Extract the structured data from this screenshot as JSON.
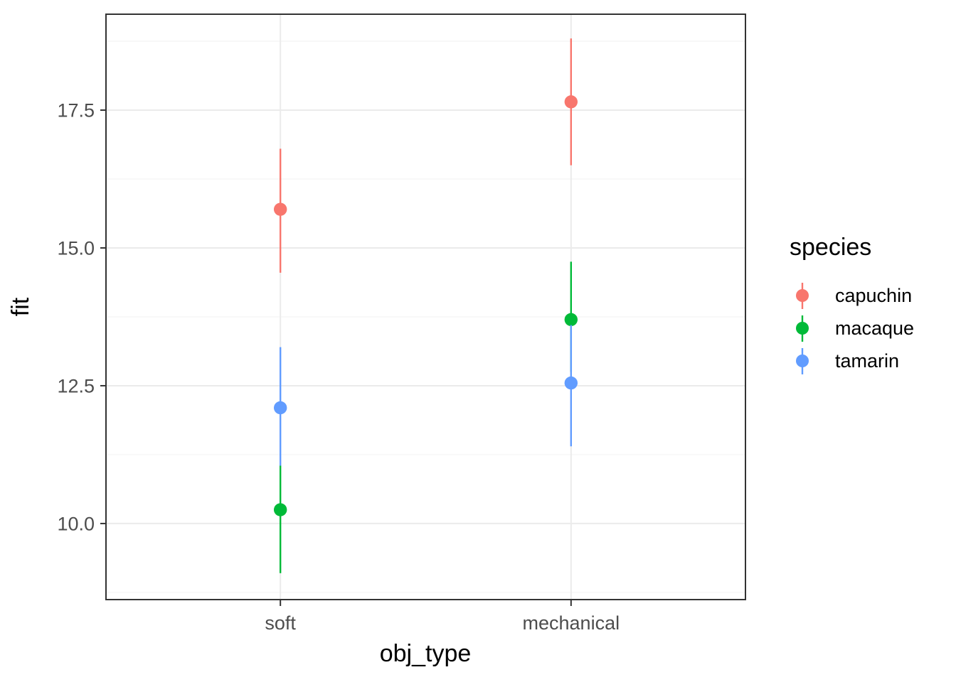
{
  "chart_data": {
    "type": "pointrange-scatter",
    "title": "",
    "xlabel": "obj_type",
    "ylabel": "fit",
    "categories": [
      "soft",
      "mechanical"
    ],
    "ylim": [
      8.62,
      19.24
    ],
    "grid": true,
    "yticks_major": [
      {
        "value": 17.5,
        "label": "17.5"
      },
      {
        "value": 15.0,
        "label": "15.0"
      },
      {
        "value": 12.5,
        "label": "12.5"
      },
      {
        "value": 10.0,
        "label": "10.0"
      }
    ],
    "yticks_minor": [
      18.75,
      16.25,
      13.75,
      11.25,
      8.75
    ],
    "legend": {
      "title": "species",
      "position": "right"
    },
    "series": [
      {
        "name": "capuchin",
        "color": "#F8766D",
        "points": [
          {
            "x": "soft",
            "fit": 15.7,
            "lower": 14.55,
            "upper": 16.8
          },
          {
            "x": "mechanical",
            "fit": 17.65,
            "lower": 16.5,
            "upper": 18.8
          }
        ]
      },
      {
        "name": "macaque",
        "color": "#00BA38",
        "points": [
          {
            "x": "soft",
            "fit": 10.25,
            "lower": 9.1,
            "upper": 11.05
          },
          {
            "x": "mechanical",
            "fit": 13.7,
            "lower": 12.75,
            "upper": 14.75
          }
        ]
      },
      {
        "name": "tamarin",
        "color": "#619CFF",
        "points": [
          {
            "x": "soft",
            "fit": 12.1,
            "lower": 11.05,
            "upper": 13.2
          },
          {
            "x": "mechanical",
            "fit": 12.55,
            "lower": 11.4,
            "upper": 13.6
          }
        ]
      }
    ],
    "panel": {
      "border_color": "#333333",
      "grid_major_color": "#EBEBEB",
      "grid_minor_color": "#F4F4F4",
      "tick_color": "#333333",
      "tick_label_color": "#4D4D4D"
    }
  }
}
